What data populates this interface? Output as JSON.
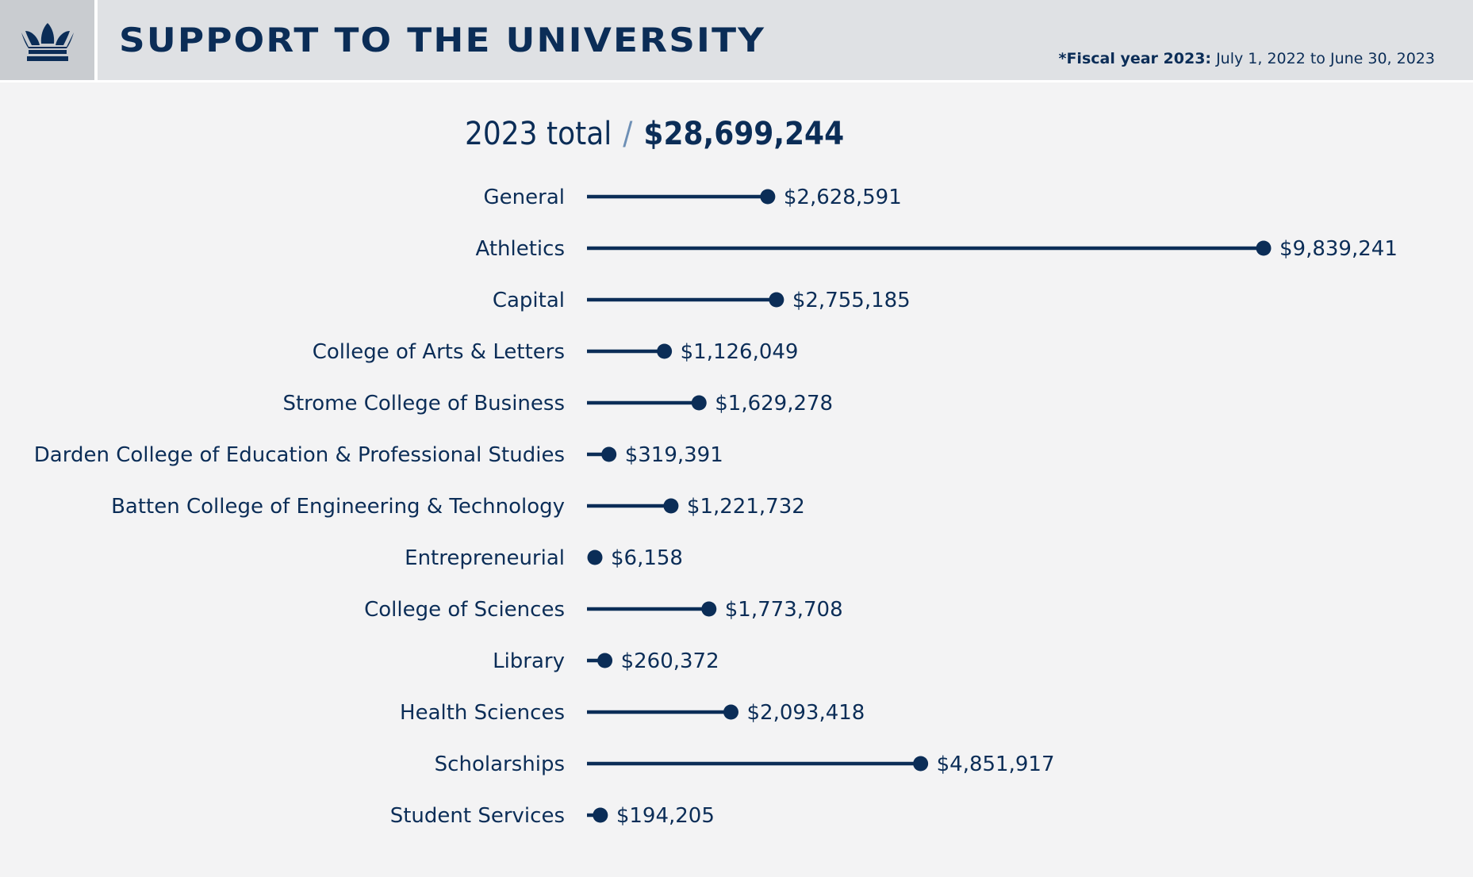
{
  "header": {
    "title": "SUPPORT TO THE UNIVERSITY",
    "fiscal_prefix": "*Fiscal year 2023:",
    "fiscal_range": "July 1, 2022 to June 30, 2023",
    "logo_icon": "crown-icon"
  },
  "total": {
    "label": "2023 total",
    "separator": "/",
    "amount": "$28,699,244"
  },
  "colors": {
    "primary": "#0b2d57",
    "background": "#f3f3f4",
    "header_bg": "#dfe1e4",
    "logo_bg": "#c9ccd0",
    "slash": "#6d8fb5"
  },
  "chart_data": {
    "type": "bar",
    "orientation": "horizontal",
    "style": "lollipop",
    "categories": [
      "General",
      "Athletics",
      "Capital",
      "College of Arts & Letters",
      "Strome College of Business",
      "Darden College of Education & Professional Studies",
      "Batten College of Engineering & Technology",
      "Entrepreneurial",
      "College of Sciences",
      "Library",
      "Health Sciences",
      "Scholarships",
      "Student Services"
    ],
    "values": [
      2628591,
      9839241,
      2755185,
      1126049,
      1629278,
      319391,
      1221732,
      6158,
      1773708,
      260372,
      2093418,
      4851917,
      194205
    ],
    "value_labels": [
      "$2,628,591",
      "$9,839,241",
      "$2,755,185",
      "$1,126,049",
      "$1,629,278",
      "$319,391",
      "$1,221,732",
      "$6,158",
      "$1,773,708",
      "$260,372",
      "$2,093,418",
      "$4,851,917",
      "$194,205"
    ],
    "grid": false,
    "legend": "none"
  }
}
